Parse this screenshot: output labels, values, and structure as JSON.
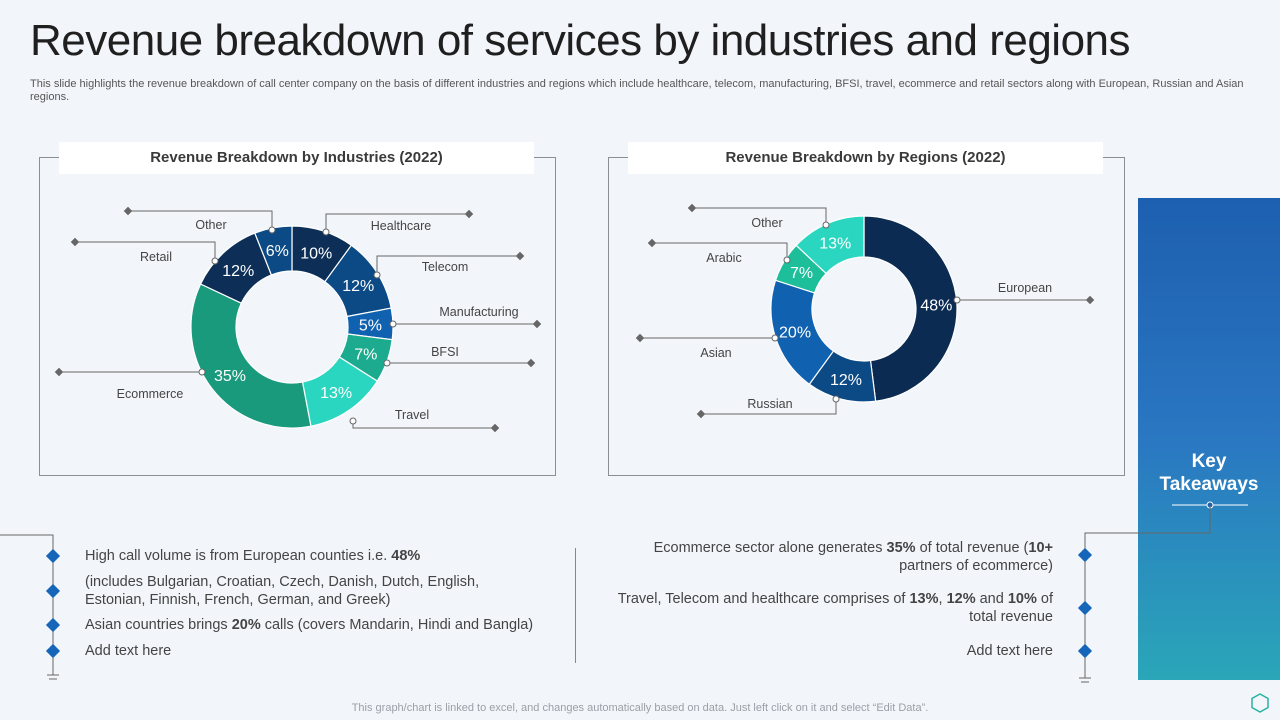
{
  "title": "Revenue breakdown of services by industries and regions",
  "subtitle": "This slide highlights the revenue breakdown of call center company on the basis of different industries and regions which include healthcare, telecom, manufacturing, BFSI, travel,  ecommerce and retail sectors along with European, Russian and Asian regions.",
  "panels": {
    "industries_title": "Revenue Breakdown by Industries (2022)",
    "regions_title": "Revenue Breakdown by Regions (2022)"
  },
  "chart_data": [
    {
      "type": "pie",
      "title": "Revenue Breakdown by Industries (2022)",
      "categories": [
        "Healthcare",
        "Telecom",
        "Manufacturing",
        "BFSI",
        "Travel",
        "Ecommerce",
        "Retail",
        "Other"
      ],
      "values": [
        10,
        12,
        5,
        7,
        13,
        35,
        12,
        6
      ],
      "labels": [
        "10%",
        "12%",
        "5%",
        "7%",
        "13%",
        "35%",
        "12%",
        "6%"
      ],
      "colors": [
        "#0d2f57",
        "#0c4a86",
        "#1062b1",
        "#1cab8f",
        "#2ad6bf",
        "#1a9a7c",
        "#0d2f57",
        "#0c4a86"
      ]
    },
    {
      "type": "pie",
      "title": "Revenue Breakdown by Regions (2022)",
      "categories": [
        "European",
        "Russian",
        "Asian",
        "Arabic",
        "Other"
      ],
      "values": [
        48,
        12,
        20,
        7,
        13
      ],
      "labels": [
        "48%",
        "12%",
        "20%",
        "7%",
        "13%"
      ],
      "colors": [
        "#0b2b52",
        "#0c4a86",
        "#1062b1",
        "#1cbf9a",
        "#2ad6bf"
      ]
    }
  ],
  "key_takeaways": {
    "title_line1": "Key",
    "title_line2": "Takeaways"
  },
  "left_bullets": [
    {
      "pre": "High call volume is from European counties i.e. ",
      "bold": "48%",
      "post": ""
    },
    {
      "pre": "(includes Bulgarian, Croatian, Czech, Danish, Dutch, English, Estonian, Finnish, French, German, and Greek)",
      "bold": "",
      "post": ""
    },
    {
      "pre": "Asian countries brings ",
      "bold": "20%",
      "post": " calls (covers Mandarin, Hindi and Bangla)"
    },
    {
      "pre": "Add text here",
      "bold": "",
      "post": ""
    }
  ],
  "right_bullets": {
    "b1_pre": "Ecommerce sector alone generates ",
    "b1_bold1": "35%",
    "b1_mid": " of total revenue (",
    "b1_bold2": "10+",
    "b1_post": " partners of ecommerce)",
    "b2_pre": "Travel, Telecom and healthcare comprises of ",
    "b2_bold1": "13%",
    "b2_sep1": ", ",
    "b2_bold2": "12%",
    "b2_sep2": " and ",
    "b2_bold3": "10%",
    "b2_post": " of total revenue",
    "b3": "Add text here"
  },
  "footer": "This graph/chart is linked to excel,  and changes automatically based on data. Just left click on it and select “Edit Data”."
}
